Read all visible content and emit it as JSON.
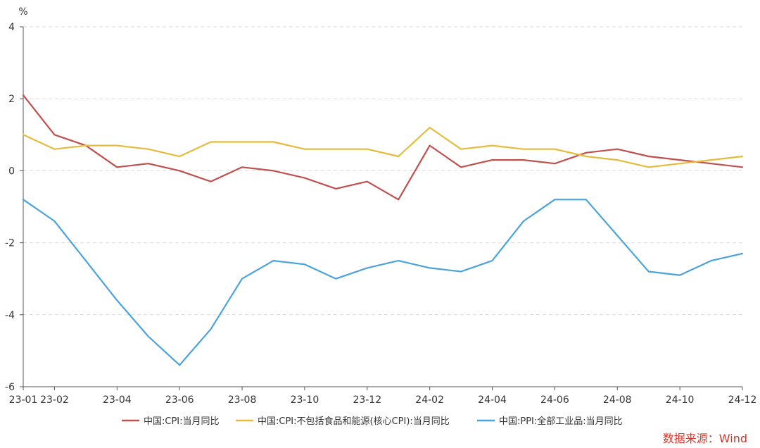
{
  "chart_data": {
    "type": "line",
    "ylabel": "%",
    "ylim": [
      -6,
      4
    ],
    "y_ticks": [
      -6,
      -4,
      -2,
      0,
      2,
      4
    ],
    "grid": "horizontal dashed",
    "legend_position": "bottom",
    "categories": [
      "23-01",
      "23-02",
      "23-03",
      "23-04",
      "23-05",
      "23-06",
      "23-07",
      "23-08",
      "23-09",
      "23-10",
      "23-11",
      "23-12",
      "24-01",
      "24-02",
      "24-03",
      "24-04",
      "24-05",
      "24-06",
      "24-07",
      "24-08",
      "24-09",
      "24-10",
      "24-11",
      "24-12"
    ],
    "x_tick_labels": [
      "23-01",
      "23-02",
      "23-04",
      "23-06",
      "23-08",
      "23-10",
      "23-12",
      "24-02",
      "24-04",
      "24-06",
      "24-08",
      "24-10",
      "24-12"
    ],
    "series": [
      {
        "name": "中国:CPI:当月同比",
        "color": "#c0504d",
        "values": [
          2.1,
          1.0,
          0.7,
          0.1,
          0.2,
          0.0,
          -0.3,
          0.1,
          0.0,
          -0.2,
          -0.5,
          -0.3,
          -0.8,
          0.7,
          0.1,
          0.3,
          0.3,
          0.2,
          0.5,
          0.6,
          0.4,
          0.3,
          0.2,
          0.1
        ]
      },
      {
        "name": "中国:CPI:不包括食品和能源(核心CPI):当月同比",
        "color": "#e5bb3c",
        "values": [
          1.0,
          0.6,
          0.7,
          0.7,
          0.6,
          0.4,
          0.8,
          0.8,
          0.8,
          0.6,
          0.6,
          0.6,
          0.4,
          1.2,
          0.6,
          0.7,
          0.6,
          0.6,
          0.4,
          0.3,
          0.1,
          0.2,
          0.3,
          0.4
        ]
      },
      {
        "name": "中国:PPI:全部工业品:当月同比",
        "color": "#4aa3dd",
        "values": [
          -0.8,
          -1.4,
          -2.5,
          -3.6,
          -4.6,
          -5.4,
          -4.4,
          -3.0,
          -2.5,
          -2.6,
          -3.0,
          -2.7,
          -2.5,
          -2.7,
          -2.8,
          -2.5,
          -1.4,
          -0.8,
          -0.8,
          -1.8,
          -2.8,
          -2.9,
          -2.5,
          -2.3
        ]
      }
    ]
  },
  "source_note": "数据来源：Wind"
}
